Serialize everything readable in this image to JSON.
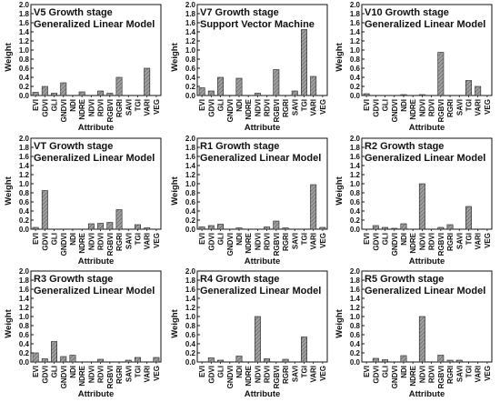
{
  "chart_data": [
    {
      "type": "bar",
      "title": "V5 Growth stage",
      "subtitle": "Generalized Linear Model",
      "xlabel": "Attribute",
      "ylabel": "Weight",
      "ylim": [
        0,
        2.0
      ],
      "yticks": [
        0.0,
        0.2,
        0.4,
        0.6,
        0.8,
        1.0,
        1.2,
        1.4,
        1.6,
        1.8,
        2.0
      ],
      "categories": [
        "EVI",
        "GDVI",
        "GLI",
        "GNDVI",
        "NDI",
        "NDRE",
        "NDVI",
        "RDVI",
        "RGBVI",
        "RGRI",
        "SAVI",
        "TGI",
        "VARI",
        "VEG"
      ],
      "values": [
        0.07,
        0.2,
        0.05,
        0.28,
        0.0,
        0.08,
        0.0,
        0.1,
        0.05,
        0.4,
        0.0,
        0.0,
        0.6,
        0.0
      ]
    },
    {
      "type": "bar",
      "title": "V7 Growth stage",
      "subtitle": "Support Vector Machine",
      "xlabel": "Attribute",
      "ylabel": "Weight",
      "ylim": [
        0,
        2.0
      ],
      "yticks": [
        0.0,
        0.2,
        0.4,
        0.6,
        0.8,
        1.0,
        1.2,
        1.4,
        1.6,
        1.8,
        2.0
      ],
      "categories": [
        "EVI",
        "GDVI",
        "GLI",
        "GNDVI",
        "NDI",
        "NDRE",
        "NDVI",
        "RDVI",
        "RGBVI",
        "RGRI",
        "SAVI",
        "TGI",
        "VARI",
        "VEG"
      ],
      "values": [
        0.17,
        0.1,
        0.4,
        0.0,
        0.38,
        0.0,
        0.05,
        0.0,
        0.57,
        0.0,
        0.1,
        1.45,
        0.42,
        0.0
      ]
    },
    {
      "type": "bar",
      "title": "V10 Growth stage",
      "subtitle": "Generalized Linear Model",
      "xlabel": "Attribute",
      "ylabel": "Weight",
      "ylim": [
        0,
        2.0
      ],
      "yticks": [
        0.0,
        0.2,
        0.4,
        0.6,
        0.8,
        1.0,
        1.2,
        1.4,
        1.6,
        1.8,
        2.0
      ],
      "categories": [
        "EVI",
        "GDVI",
        "GLI",
        "GNDVI",
        "NDI",
        "NDRE",
        "NDVI",
        "RDVI",
        "RGBVI",
        "RGRI",
        "SAVI",
        "TGI",
        "VARI",
        "VEG"
      ],
      "values": [
        0.04,
        0.0,
        0.0,
        0.0,
        0.02,
        0.0,
        0.02,
        0.0,
        0.95,
        0.0,
        0.0,
        0.33,
        0.2,
        0.0
      ]
    },
    {
      "type": "bar",
      "title": "VT Growth stage",
      "subtitle": "Generalized Linear Model",
      "xlabel": "Attribute",
      "ylabel": "Weight",
      "ylim": [
        0,
        2.0
      ],
      "yticks": [
        0.0,
        0.2,
        0.4,
        0.6,
        0.8,
        1.0,
        1.2,
        1.4,
        1.6,
        1.8,
        2.0
      ],
      "categories": [
        "EVI",
        "GDVI",
        "GLI",
        "GNDVI",
        "NDI",
        "NDRE",
        "NDVI",
        "RDVI",
        "RGBVI",
        "RGRI",
        "SAVI",
        "TGI",
        "VARI",
        "VEG"
      ],
      "values": [
        0.04,
        0.85,
        0.0,
        0.0,
        0.0,
        0.0,
        0.12,
        0.13,
        0.15,
        0.43,
        0.0,
        0.1,
        0.03,
        0.0
      ]
    },
    {
      "type": "bar",
      "title": "R1 Growth stage",
      "subtitle": "Generalized Linear Model",
      "xlabel": "Attribute",
      "ylabel": "Weight",
      "ylim": [
        0,
        2.0
      ],
      "yticks": [
        0.0,
        0.2,
        0.4,
        0.6,
        0.8,
        1.0,
        1.2,
        1.4,
        1.6,
        1.8,
        2.0
      ],
      "categories": [
        "EVI",
        "GDVI",
        "GLI",
        "GNDVI",
        "NDI",
        "NDRE",
        "NDVI",
        "RDVI",
        "RGBVI",
        "RGRI",
        "SAVI",
        "TGI",
        "VARI",
        "VEG"
      ],
      "values": [
        0.05,
        0.08,
        0.11,
        0.0,
        0.03,
        0.0,
        0.0,
        0.05,
        0.18,
        0.03,
        0.0,
        0.0,
        0.98,
        0.04
      ]
    },
    {
      "type": "bar",
      "title": "R2 Growth stage",
      "subtitle": "Generalized Linear Model",
      "xlabel": "Attribute",
      "ylabel": "Weight",
      "ylim": [
        0,
        2.0
      ],
      "yticks": [
        0.0,
        0.2,
        0.4,
        0.6,
        0.8,
        1.0,
        1.2,
        1.4,
        1.6,
        1.8,
        2.0
      ],
      "categories": [
        "EVI",
        "GDVI",
        "GLI",
        "GNDVI",
        "NDI",
        "NDRE",
        "NDVI",
        "RDVI",
        "RGBVI",
        "RGRI",
        "SAVI",
        "TGI",
        "VARI",
        "VEG"
      ],
      "values": [
        0.0,
        0.08,
        0.04,
        0.02,
        0.12,
        0.0,
        1.0,
        0.0,
        0.04,
        0.1,
        0.0,
        0.5,
        0.0,
        0.0
      ]
    },
    {
      "type": "bar",
      "title": "R3 Growth stage",
      "subtitle": "Generalized Linear Model",
      "xlabel": "Attribute",
      "ylabel": "Weight",
      "ylim": [
        0,
        2.0
      ],
      "yticks": [
        0.0,
        0.2,
        0.4,
        0.6,
        0.8,
        1.0,
        1.2,
        1.4,
        1.6,
        1.8,
        2.0
      ],
      "categories": [
        "EVI",
        "GDVI",
        "GLI",
        "GNDVI",
        "NDI",
        "NDRE",
        "NDVI",
        "RDVI",
        "RGBVI",
        "RGRI",
        "SAVI",
        "TGI",
        "VARI",
        "VEG"
      ],
      "values": [
        0.2,
        0.07,
        0.45,
        0.12,
        0.15,
        0.0,
        0.0,
        0.06,
        0.0,
        0.0,
        0.04,
        0.1,
        0.0,
        0.1
      ]
    },
    {
      "type": "bar",
      "title": "R4 Growth stage",
      "subtitle": "Generalized Linear Model",
      "xlabel": "Attribute",
      "ylabel": "Weight",
      "ylim": [
        0,
        2.0
      ],
      "yticks": [
        0.0,
        0.2,
        0.4,
        0.6,
        0.8,
        1.0,
        1.2,
        1.4,
        1.6,
        1.8,
        2.0
      ],
      "categories": [
        "EVI",
        "GDVI",
        "GLI",
        "GNDVI",
        "NDI",
        "NDRE",
        "NDVI",
        "RDVI",
        "RGBVI",
        "RGRI",
        "SAVI",
        "TGI",
        "VARI",
        "VEG"
      ],
      "values": [
        0.0,
        0.09,
        0.04,
        0.0,
        0.13,
        0.0,
        1.0,
        0.07,
        0.0,
        0.06,
        0.0,
        0.55,
        0.0,
        0.0
      ]
    },
    {
      "type": "bar",
      "title": "R5 Growth stage",
      "subtitle": "Generalized Linear Model",
      "xlabel": "Attribute",
      "ylabel": "Weight",
      "ylim": [
        0,
        2.0
      ],
      "yticks": [
        0.0,
        0.2,
        0.4,
        0.6,
        0.8,
        1.0,
        1.2,
        1.4,
        1.6,
        1.8,
        2.0
      ],
      "categories": [
        "EVI",
        "GDVI",
        "GLI",
        "GNDVI",
        "NDI",
        "NDRE",
        "NDVI",
        "RDVI",
        "RGBVI",
        "RGRI",
        "SAVI",
        "TGI",
        "VARI",
        "VEG"
      ],
      "values": [
        0.0,
        0.08,
        0.05,
        0.0,
        0.14,
        0.0,
        1.0,
        0.0,
        0.15,
        0.04,
        0.04,
        0.0,
        0.0,
        0.0
      ]
    }
  ],
  "colors": {
    "bar_fill": "#9a9a9a",
    "bar_hatch": "#5a5a5a",
    "bar_stroke": "#222222",
    "axis": "#111111"
  }
}
